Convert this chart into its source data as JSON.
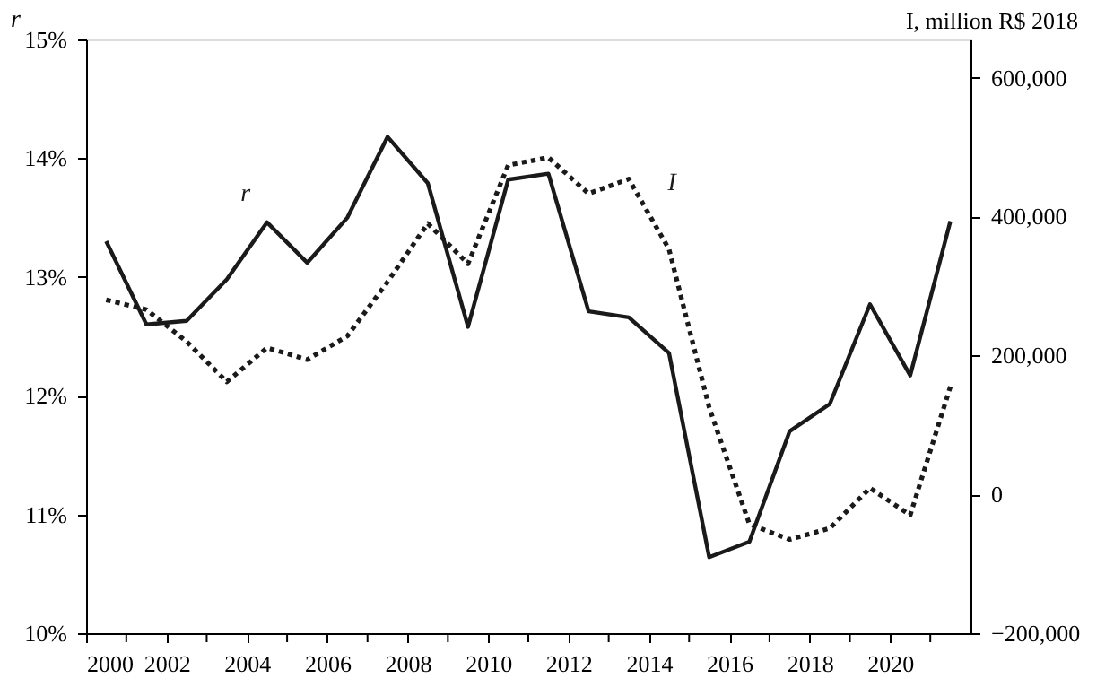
{
  "chart_data": {
    "type": "line",
    "ylabel": "r",
    "y2label": "I, million R$ 2018",
    "x": [
      2000.5,
      2001.5,
      2002.5,
      2003.5,
      2004.5,
      2005.5,
      2006.5,
      2007.5,
      2008.5,
      2009.5,
      2010.5,
      2011.5,
      2012.5,
      2013.5,
      2014.5,
      2015.5,
      2016.5,
      2017.5,
      2018.5,
      2019.5,
      2020.5,
      2021.5
    ],
    "series": [
      {
        "name": "r",
        "color": "#1a1a1a",
        "line_style": "solid",
        "values": [
          13.3,
          12.6,
          12.63,
          12.98,
          13.46,
          13.12,
          13.5,
          14.18,
          13.79,
          12.58,
          13.82,
          13.87,
          12.71,
          12.66,
          12.36,
          10.64,
          10.77,
          11.7,
          11.93,
          12.77,
          12.17,
          13.47
        ]
      },
      {
        "name": "I",
        "color": "#1a1a1a",
        "line_style": "dotted",
        "axis": "y2",
        "values": [
          280000,
          266000,
          220000,
          162000,
          211000,
          194000,
          228000,
          306000,
          390000,
          332000,
          474000,
          485000,
          433000,
          454000,
          353000,
          125000,
          -43000,
          -65000,
          -49000,
          9000,
          -30000,
          155000
        ]
      }
    ],
    "xlim": [
      2000,
      2022
    ],
    "xticks": [
      2000,
      {
        "value": 2001,
        "label": null
      },
      2002,
      {
        "value": 2003,
        "label": null
      },
      2004,
      {
        "value": 2005,
        "label": null
      },
      2006,
      {
        "value": 2007,
        "label": null
      },
      2008,
      {
        "value": 2009,
        "label": null
      },
      2010,
      {
        "value": 2011,
        "label": null
      },
      2012,
      {
        "value": 2013,
        "label": null
      },
      2014,
      {
        "value": 2015,
        "label": null
      },
      2016,
      {
        "value": 2017,
        "label": null
      },
      2018,
      {
        "value": 2019,
        "label": null
      },
      2020,
      {
        "value": 2021,
        "label": null
      }
    ],
    "ylim": [
      10,
      15
    ],
    "yticks": [
      {
        "value": 10,
        "label": "10%"
      },
      {
        "value": 11,
        "label": "11%"
      },
      {
        "value": 12,
        "label": "12%"
      },
      {
        "value": 13,
        "label": "13%"
      },
      {
        "value": 14,
        "label": "14%"
      },
      {
        "value": 15,
        "label": "15%"
      }
    ],
    "y2lim": [
      -200000,
      655000
    ],
    "y2ticks": [
      {
        "value": -200000,
        "label": "−200,000"
      },
      {
        "value": 0,
        "label": "0"
      },
      {
        "value": 200000,
        "label": "200,000"
      },
      {
        "value": 400000,
        "label": "400,000"
      },
      {
        "value": 600000,
        "label": "600,000"
      }
    ],
    "grid": false
  }
}
